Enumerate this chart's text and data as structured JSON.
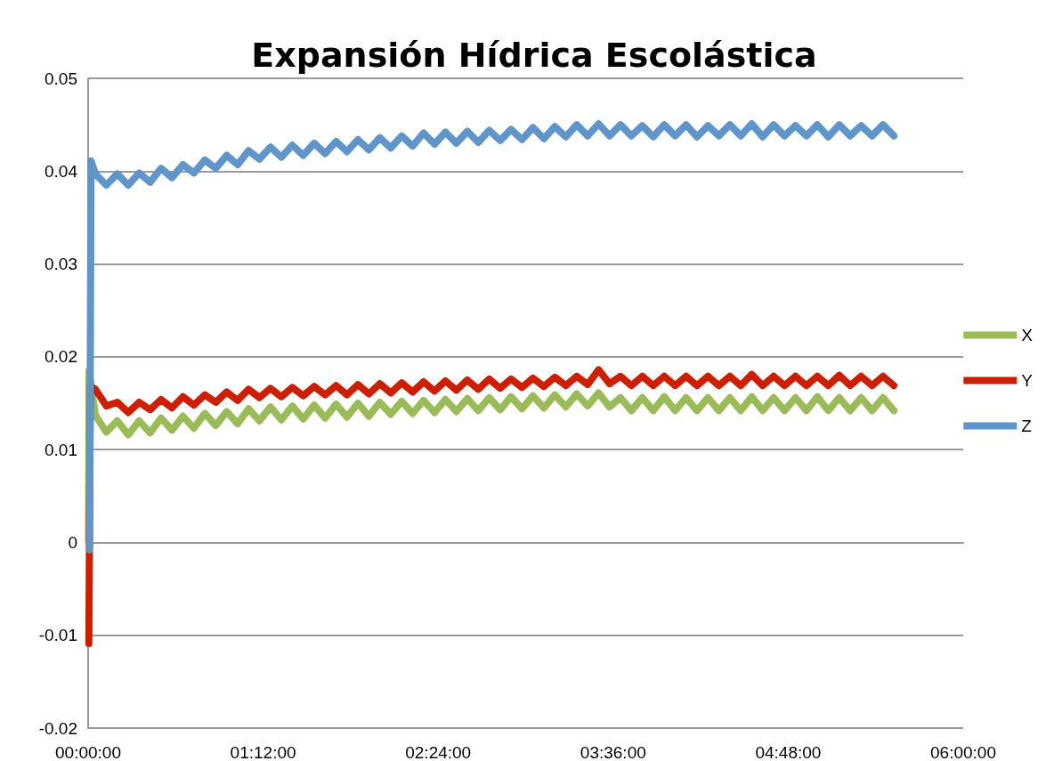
{
  "chart_data": {
    "type": "line",
    "title": "Expansión Hídrica Escolástica",
    "xlim": [
      0,
      6
    ],
    "xticks": [
      {
        "value": 0,
        "label": "00:00:00"
      },
      {
        "value": 1.2,
        "label": "01:12:00"
      },
      {
        "value": 2.4,
        "label": "02:24:00"
      },
      {
        "value": 3.6,
        "label": "03:36:00"
      },
      {
        "value": 4.8,
        "label": "04:48:00"
      },
      {
        "value": 6,
        "label": "06:00:00"
      }
    ],
    "ylim": [
      -0.02,
      0.05
    ],
    "yticks": [
      -0.02,
      -0.01,
      0,
      0.01,
      0.02,
      0.03,
      0.04,
      0.05
    ],
    "grid": "y",
    "legend": "right",
    "marker": "none",
    "line_style": "solid",
    "series": [
      {
        "name": "X",
        "color": "#9bbb59",
        "x": [
          0.003,
          0.006,
          0.05,
          0.125,
          0.2,
          0.275,
          0.35,
          0.425,
          0.5,
          0.575,
          0.65,
          0.725,
          0.8,
          0.875,
          0.95,
          1.025,
          1.1,
          1.175,
          1.25,
          1.325,
          1.4,
          1.475,
          1.55,
          1.625,
          1.7,
          1.775,
          1.85,
          1.925,
          2,
          2.075,
          2.15,
          2.225,
          2.3,
          2.375,
          2.45,
          2.525,
          2.6,
          2.675,
          2.75,
          2.825,
          2.9,
          2.975,
          3.05,
          3.125,
          3.2,
          3.275,
          3.35,
          3.425,
          3.5,
          3.575,
          3.65,
          3.725,
          3.8,
          3.875,
          3.95,
          4.025,
          4.1,
          4.175,
          4.25,
          4.325,
          4.4,
          4.475,
          4.55,
          4.625,
          4.7,
          4.775,
          4.85,
          4.925,
          5,
          5.075,
          5.15,
          5.225,
          5.3,
          5.375,
          5.45,
          5.525
        ],
        "values": [
          0.0001,
          0.0185,
          0.0137,
          0.0119,
          0.0131,
          0.0116,
          0.0131,
          0.0118,
          0.0134,
          0.0121,
          0.0136,
          0.0123,
          0.0139,
          0.0126,
          0.0141,
          0.0128,
          0.0144,
          0.0131,
          0.0146,
          0.0132,
          0.0147,
          0.0133,
          0.0148,
          0.0134,
          0.0149,
          0.0135,
          0.015,
          0.0136,
          0.0151,
          0.0138,
          0.0152,
          0.0139,
          0.0153,
          0.014,
          0.0154,
          0.0141,
          0.0155,
          0.0142,
          0.0156,
          0.0143,
          0.0157,
          0.0144,
          0.0158,
          0.0145,
          0.0159,
          0.0146,
          0.016,
          0.0147,
          0.0161,
          0.0146,
          0.0156,
          0.0142,
          0.0156,
          0.0142,
          0.0157,
          0.0142,
          0.0156,
          0.0142,
          0.0156,
          0.0142,
          0.0156,
          0.0142,
          0.0157,
          0.0142,
          0.0156,
          0.0142,
          0.0156,
          0.0142,
          0.0157,
          0.0142,
          0.0156,
          0.0142,
          0.0156,
          0.0142,
          0.0156,
          0.0142
        ]
      },
      {
        "name": "Y",
        "color": "#cc1f00",
        "x": [
          0.005,
          0.015,
          0.05,
          0.125,
          0.2,
          0.275,
          0.35,
          0.425,
          0.5,
          0.575,
          0.65,
          0.725,
          0.8,
          0.875,
          0.95,
          1.025,
          1.1,
          1.175,
          1.25,
          1.325,
          1.4,
          1.475,
          1.55,
          1.625,
          1.7,
          1.775,
          1.85,
          1.925,
          2,
          2.075,
          2.15,
          2.225,
          2.3,
          2.375,
          2.45,
          2.525,
          2.6,
          2.675,
          2.75,
          2.825,
          2.9,
          2.975,
          3.05,
          3.125,
          3.2,
          3.275,
          3.35,
          3.425,
          3.5,
          3.575,
          3.65,
          3.725,
          3.8,
          3.875,
          3.95,
          4.025,
          4.1,
          4.175,
          4.25,
          4.325,
          4.4,
          4.475,
          4.55,
          4.625,
          4.7,
          4.775,
          4.85,
          4.925,
          5,
          5.075,
          5.15,
          5.225,
          5.3,
          5.375,
          5.45,
          5.525
        ],
        "values": [
          -0.0109,
          0.0168,
          0.0165,
          0.0147,
          0.0151,
          0.014,
          0.0151,
          0.0143,
          0.0154,
          0.0145,
          0.0157,
          0.0148,
          0.0159,
          0.0151,
          0.0162,
          0.0153,
          0.0165,
          0.0156,
          0.0166,
          0.0157,
          0.0167,
          0.0158,
          0.0168,
          0.0159,
          0.0169,
          0.0159,
          0.017,
          0.016,
          0.0171,
          0.0161,
          0.0172,
          0.0162,
          0.0173,
          0.0163,
          0.0174,
          0.0164,
          0.0175,
          0.0165,
          0.0176,
          0.0166,
          0.0176,
          0.0167,
          0.0177,
          0.0168,
          0.0178,
          0.0169,
          0.0179,
          0.017,
          0.0186,
          0.0171,
          0.0179,
          0.0169,
          0.0179,
          0.0169,
          0.0179,
          0.0169,
          0.0179,
          0.0169,
          0.0179,
          0.0169,
          0.0179,
          0.0169,
          0.0181,
          0.0169,
          0.0179,
          0.0169,
          0.0179,
          0.0169,
          0.0179,
          0.0169,
          0.018,
          0.0169,
          0.0179,
          0.0169,
          0.0179,
          0.0169
        ]
      },
      {
        "name": "Z",
        "color": "#5f95c8",
        "x": [
          0.01,
          0.02,
          0.05,
          0.125,
          0.2,
          0.275,
          0.35,
          0.425,
          0.5,
          0.575,
          0.65,
          0.725,
          0.8,
          0.875,
          0.95,
          1.025,
          1.1,
          1.175,
          1.25,
          1.325,
          1.4,
          1.475,
          1.55,
          1.625,
          1.7,
          1.775,
          1.85,
          1.925,
          2,
          2.075,
          2.15,
          2.225,
          2.3,
          2.375,
          2.45,
          2.525,
          2.6,
          2.675,
          2.75,
          2.825,
          2.9,
          2.975,
          3.05,
          3.125,
          3.2,
          3.275,
          3.35,
          3.425,
          3.5,
          3.575,
          3.65,
          3.725,
          3.8,
          3.875,
          3.95,
          4.025,
          4.1,
          4.175,
          4.25,
          4.325,
          4.4,
          4.475,
          4.55,
          4.625,
          4.7,
          4.775,
          4.85,
          4.925,
          5,
          5.075,
          5.15,
          5.225,
          5.3,
          5.375,
          5.45,
          5.525
        ],
        "values": [
          -0.0008,
          0.0411,
          0.0397,
          0.0385,
          0.0397,
          0.0385,
          0.0398,
          0.0388,
          0.0403,
          0.0393,
          0.0407,
          0.0398,
          0.0412,
          0.0403,
          0.0417,
          0.0407,
          0.0422,
          0.0413,
          0.0426,
          0.0415,
          0.0428,
          0.0417,
          0.043,
          0.0419,
          0.0432,
          0.0421,
          0.0434,
          0.0423,
          0.0436,
          0.0425,
          0.0438,
          0.0427,
          0.0441,
          0.0429,
          0.0442,
          0.043,
          0.0443,
          0.0431,
          0.0444,
          0.0433,
          0.0445,
          0.0434,
          0.0447,
          0.0435,
          0.0448,
          0.0437,
          0.045,
          0.0438,
          0.0451,
          0.0438,
          0.045,
          0.0438,
          0.0449,
          0.0437,
          0.045,
          0.0438,
          0.045,
          0.0437,
          0.0449,
          0.0438,
          0.045,
          0.0438,
          0.0451,
          0.0437,
          0.045,
          0.0438,
          0.0449,
          0.0438,
          0.045,
          0.0437,
          0.045,
          0.0438,
          0.0449,
          0.0438,
          0.045,
          0.0438
        ]
      }
    ]
  }
}
